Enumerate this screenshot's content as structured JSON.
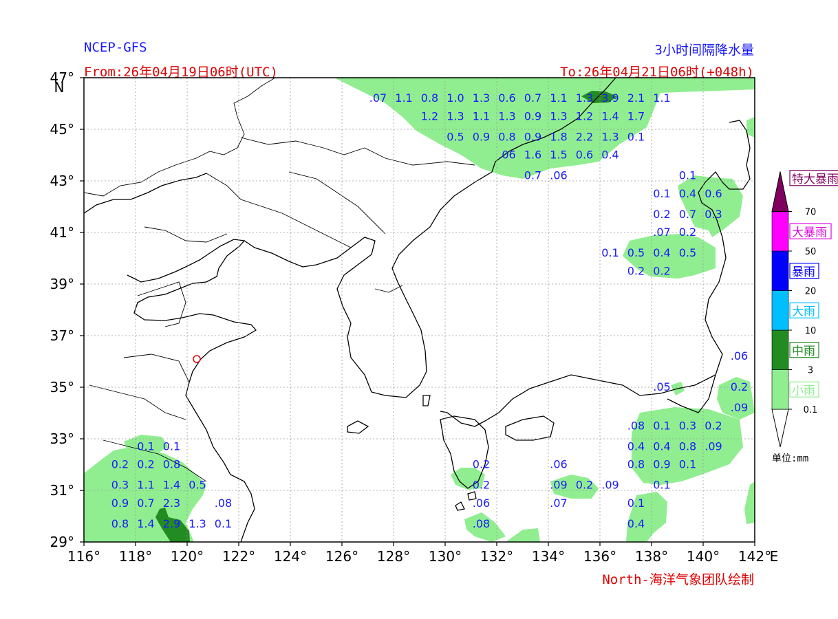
{
  "header": {
    "model": "NCEP-GFS",
    "title": "3小时间隔降水量",
    "from": "From:26年04月19日06时(UTC)",
    "to": "To:26年04月21日06时(+048h)",
    "credit": "North-海洋气象团队绘制"
  },
  "axes": {
    "lat_ticks": [
      "47°",
      "45°",
      "43°",
      "41°",
      "39°",
      "37°",
      "35°",
      "33°",
      "31°",
      "29°"
    ],
    "lon_ticks": [
      "116°",
      "118°",
      "120°",
      "122°",
      "124°",
      "126°",
      "128°",
      "130°",
      "132°",
      "134°",
      "136°",
      "138°",
      "140°",
      "142°"
    ],
    "lat_unit": "N",
    "lon_unit": "E",
    "extent": {
      "lon": [
        116,
        142
      ],
      "lat": [
        29,
        47
      ]
    }
  },
  "legend": {
    "unit": "单位:mm",
    "categories": [
      {
        "label": "小雨",
        "color": "#90ee90",
        "text_color": "#90ee90"
      },
      {
        "label": "中雨",
        "color": "#228b22",
        "text_color": "#228b22"
      },
      {
        "label": "大雨",
        "color": "#00bfff",
        "text_color": "#00bfff"
      },
      {
        "label": "暴雨",
        "color": "#0000ff",
        "text_color": "#0000ff"
      },
      {
        "label": "大暴雨",
        "color": "#ff00ff",
        "text_color": "#e000e0"
      },
      {
        "label": "特大暴雨",
        "color": "#800060",
        "text_color": "#800060"
      }
    ],
    "thresholds": [
      "0.1",
      "3",
      "10",
      "20",
      "50",
      "70"
    ]
  },
  "colors": {
    "value_text": "#1a1aff",
    "coast": "#000000",
    "grid": "#999999"
  },
  "values": [
    {
      "lon": 127.4,
      "lat": 46.2,
      "t": ".07"
    },
    {
      "lon": 128.4,
      "lat": 46.2,
      "t": "1.1"
    },
    {
      "lon": 129.4,
      "lat": 46.2,
      "t": "0.8"
    },
    {
      "lon": 130.4,
      "lat": 46.2,
      "t": "1.0"
    },
    {
      "lon": 131.4,
      "lat": 46.2,
      "t": "1.3"
    },
    {
      "lon": 132.4,
      "lat": 46.2,
      "t": "0.6"
    },
    {
      "lon": 133.4,
      "lat": 46.2,
      "t": "0.7"
    },
    {
      "lon": 134.4,
      "lat": 46.2,
      "t": "1.1"
    },
    {
      "lon": 135.4,
      "lat": 46.2,
      "t": "1.3"
    },
    {
      "lon": 136.4,
      "lat": 46.2,
      "t": "3.9"
    },
    {
      "lon": 137.4,
      "lat": 46.2,
      "t": "2.1"
    },
    {
      "lon": 138.4,
      "lat": 46.2,
      "t": "1.1"
    },
    {
      "lon": 129.4,
      "lat": 45.5,
      "t": "1.2"
    },
    {
      "lon": 130.4,
      "lat": 45.5,
      "t": "1.3"
    },
    {
      "lon": 131.4,
      "lat": 45.5,
      "t": "1.1"
    },
    {
      "lon": 132.4,
      "lat": 45.5,
      "t": "1.3"
    },
    {
      "lon": 133.4,
      "lat": 45.5,
      "t": "0.9"
    },
    {
      "lon": 134.4,
      "lat": 45.5,
      "t": "1.3"
    },
    {
      "lon": 135.4,
      "lat": 45.5,
      "t": "1.2"
    },
    {
      "lon": 136.4,
      "lat": 45.5,
      "t": "1.4"
    },
    {
      "lon": 137.4,
      "lat": 45.5,
      "t": "1.7"
    },
    {
      "lon": 130.4,
      "lat": 44.7,
      "t": "0.5"
    },
    {
      "lon": 131.4,
      "lat": 44.7,
      "t": "0.9"
    },
    {
      "lon": 132.4,
      "lat": 44.7,
      "t": "0.8"
    },
    {
      "lon": 133.4,
      "lat": 44.7,
      "t": "0.9"
    },
    {
      "lon": 134.4,
      "lat": 44.7,
      "t": "1.8"
    },
    {
      "lon": 135.4,
      "lat": 44.7,
      "t": "2.2"
    },
    {
      "lon": 136.4,
      "lat": 44.7,
      "t": "1.3"
    },
    {
      "lon": 137.4,
      "lat": 44.7,
      "t": "0.1"
    },
    {
      "lon": 132.4,
      "lat": 44.0,
      "t": ".06"
    },
    {
      "lon": 133.4,
      "lat": 44.0,
      "t": "1.6"
    },
    {
      "lon": 134.4,
      "lat": 44.0,
      "t": "1.5"
    },
    {
      "lon": 135.4,
      "lat": 44.0,
      "t": "0.6"
    },
    {
      "lon": 136.4,
      "lat": 44.0,
      "t": "0.4"
    },
    {
      "lon": 133.4,
      "lat": 43.2,
      "t": "0.7"
    },
    {
      "lon": 134.4,
      "lat": 43.2,
      "t": ".06"
    },
    {
      "lon": 139.4,
      "lat": 43.2,
      "t": "0.1"
    },
    {
      "lon": 138.4,
      "lat": 42.5,
      "t": "0.1"
    },
    {
      "lon": 139.4,
      "lat": 42.5,
      "t": "0.4"
    },
    {
      "lon": 140.4,
      "lat": 42.5,
      "t": "0.6"
    },
    {
      "lon": 138.4,
      "lat": 41.7,
      "t": "0.2"
    },
    {
      "lon": 139.4,
      "lat": 41.7,
      "t": "0.7"
    },
    {
      "lon": 140.4,
      "lat": 41.7,
      "t": "0.3"
    },
    {
      "lon": 138.4,
      "lat": 41.0,
      "t": ".07"
    },
    {
      "lon": 139.4,
      "lat": 41.0,
      "t": "0.2"
    },
    {
      "lon": 136.4,
      "lat": 40.2,
      "t": "0.1"
    },
    {
      "lon": 137.4,
      "lat": 40.2,
      "t": "0.5"
    },
    {
      "lon": 138.4,
      "lat": 40.2,
      "t": "0.4"
    },
    {
      "lon": 139.4,
      "lat": 40.2,
      "t": "0.5"
    },
    {
      "lon": 137.4,
      "lat": 39.5,
      "t": "0.2"
    },
    {
      "lon": 138.4,
      "lat": 39.5,
      "t": "0.2"
    },
    {
      "lon": 141.4,
      "lat": 36.2,
      "t": ".06"
    },
    {
      "lon": 138.4,
      "lat": 35.0,
      "t": ".05"
    },
    {
      "lon": 141.4,
      "lat": 35.0,
      "t": "0.2"
    },
    {
      "lon": 141.4,
      "lat": 34.2,
      "t": ".09"
    },
    {
      "lon": 137.4,
      "lat": 33.5,
      "t": ".08"
    },
    {
      "lon": 138.4,
      "lat": 33.5,
      "t": "0.1"
    },
    {
      "lon": 139.4,
      "lat": 33.5,
      "t": "0.3"
    },
    {
      "lon": 140.4,
      "lat": 33.5,
      "t": "0.2"
    },
    {
      "lon": 137.4,
      "lat": 32.7,
      "t": "0.4"
    },
    {
      "lon": 138.4,
      "lat": 32.7,
      "t": "0.4"
    },
    {
      "lon": 139.4,
      "lat": 32.7,
      "t": "0.8"
    },
    {
      "lon": 140.4,
      "lat": 32.7,
      "t": ".09"
    },
    {
      "lon": 137.4,
      "lat": 32.0,
      "t": "0.8"
    },
    {
      "lon": 138.4,
      "lat": 32.0,
      "t": "0.9"
    },
    {
      "lon": 139.4,
      "lat": 32.0,
      "t": "0.1"
    },
    {
      "lon": 138.4,
      "lat": 31.2,
      "t": "0.1"
    },
    {
      "lon": 137.4,
      "lat": 30.5,
      "t": "0.1"
    },
    {
      "lon": 137.4,
      "lat": 29.7,
      "t": "0.4"
    },
    {
      "lon": 131.4,
      "lat": 32.0,
      "t": "0.2"
    },
    {
      "lon": 131.4,
      "lat": 31.2,
      "t": "0.2"
    },
    {
      "lon": 131.4,
      "lat": 30.5,
      "t": ".06"
    },
    {
      "lon": 131.4,
      "lat": 29.7,
      "t": ".08"
    },
    {
      "lon": 134.4,
      "lat": 32.0,
      "t": ".06"
    },
    {
      "lon": 134.4,
      "lat": 31.2,
      "t": ".09"
    },
    {
      "lon": 135.4,
      "lat": 31.2,
      "t": "0.2"
    },
    {
      "lon": 136.4,
      "lat": 31.2,
      "t": ".09"
    },
    {
      "lon": 134.4,
      "lat": 30.5,
      "t": ".07"
    },
    {
      "lon": 118.4,
      "lat": 32.7,
      "t": "0.1"
    },
    {
      "lon": 119.4,
      "lat": 32.7,
      "t": "0.1"
    },
    {
      "lon": 117.4,
      "lat": 32.0,
      "t": "0.2"
    },
    {
      "lon": 118.4,
      "lat": 32.0,
      "t": "0.2"
    },
    {
      "lon": 119.4,
      "lat": 32.0,
      "t": "0.8"
    },
    {
      "lon": 117.4,
      "lat": 31.2,
      "t": "0.3"
    },
    {
      "lon": 118.4,
      "lat": 31.2,
      "t": "1.1"
    },
    {
      "lon": 119.4,
      "lat": 31.2,
      "t": "1.4"
    },
    {
      "lon": 120.4,
      "lat": 31.2,
      "t": "0.5"
    },
    {
      "lon": 117.4,
      "lat": 30.5,
      "t": "0.9"
    },
    {
      "lon": 118.4,
      "lat": 30.5,
      "t": "0.7"
    },
    {
      "lon": 119.4,
      "lat": 30.5,
      "t": "2.3"
    },
    {
      "lon": 121.4,
      "lat": 30.5,
      "t": ".08"
    },
    {
      "lon": 117.4,
      "lat": 29.7,
      "t": "0.8"
    },
    {
      "lon": 118.4,
      "lat": 29.7,
      "t": "1.4"
    },
    {
      "lon": 119.4,
      "lat": 29.7,
      "t": "2.9"
    },
    {
      "lon": 120.4,
      "lat": 29.7,
      "t": "1.3"
    },
    {
      "lon": 121.4,
      "lat": 29.7,
      "t": "0.1"
    }
  ]
}
